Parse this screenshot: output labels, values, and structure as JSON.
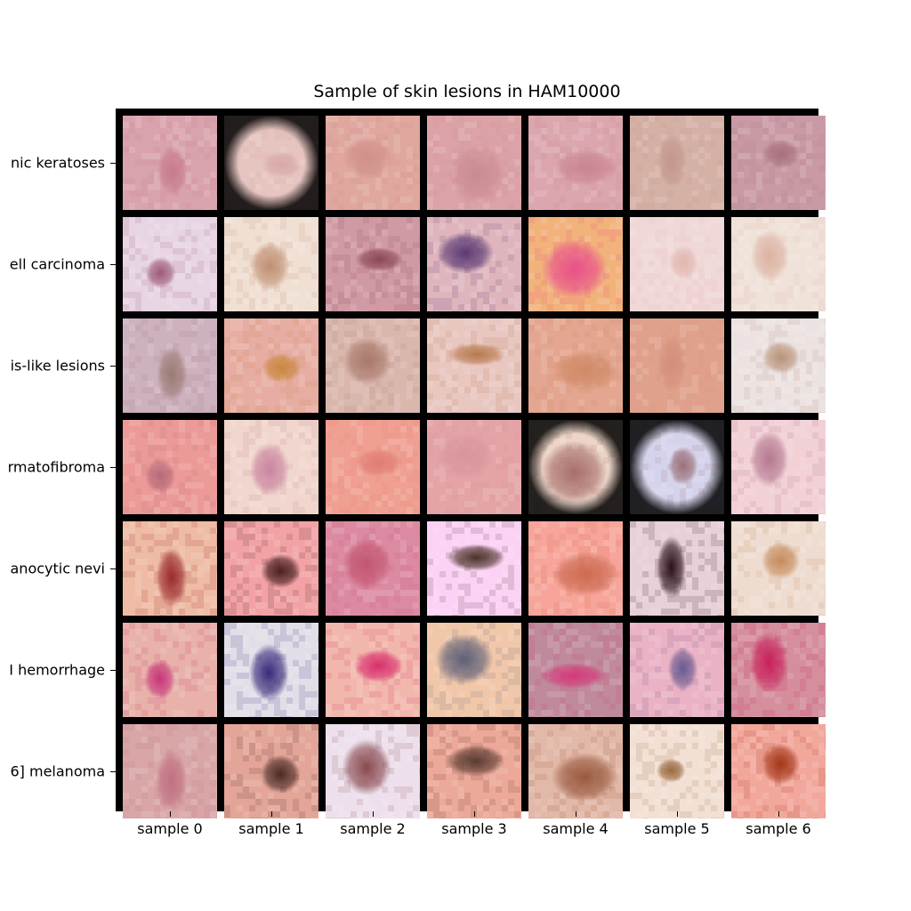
{
  "title": "Sample of skin lesions in HAM10000",
  "row_labels": [
    "nic keratoses",
    "ell carcinoma",
    "is-like lesions",
    "rmatofibroma",
    "anocytic nevi",
    "I hemorrhage",
    "6] melanoma"
  ],
  "col_labels": [
    "sample 0",
    "sample 1",
    "sample 2",
    "sample 3",
    "sample 4",
    "sample 5",
    "sample 6"
  ],
  "tiles": [
    [
      {
        "bg": "#d9a3ad",
        "lesion": "#c77a8c"
      },
      {
        "bg": "#e6c4bf",
        "lesion": "#d7a9a7",
        "vignette": true
      },
      {
        "bg": "#dfa79e",
        "lesion": "#d0908a"
      },
      {
        "bg": "#dba3a7",
        "lesion": "#cb8a93"
      },
      {
        "bg": "#dba6ad",
        "lesion": "#c98591"
      },
      {
        "bg": "#d4b0a5",
        "lesion": "#c4968c"
      },
      {
        "bg": "#c99aa5",
        "lesion": "#a8707e"
      }
    ],
    [
      {
        "bg": "#e7d5e3",
        "lesion": "#9d5a78"
      },
      {
        "bg": "#f0e0d4",
        "lesion": "#c08f72"
      },
      {
        "bg": "#d09aa5",
        "lesion": "#8b4656"
      },
      {
        "bg": "#dfb5bd",
        "lesion": "#5a3a73"
      },
      {
        "bg": "#f2b27b",
        "lesion": "#e8508a"
      },
      {
        "bg": "#f0d8d8",
        "lesion": "#e2b7b0"
      },
      {
        "bg": "#f0e2d9",
        "lesion": "#dcb2a1"
      }
    ],
    [
      {
        "bg": "#cdb1bf",
        "lesion": "#9a7a72"
      },
      {
        "bg": "#e7ada3",
        "lesion": "#c9873d"
      },
      {
        "bg": "#dab7ad",
        "lesion": "#a8786a"
      },
      {
        "bg": "#e9c7c1",
        "lesion": "#b77a4e"
      },
      {
        "bg": "#e4a690",
        "lesion": "#cf8a66"
      },
      {
        "bg": "#e0a18c",
        "lesion": "#d48d7c"
      },
      {
        "bg": "#ece2e2",
        "lesion": "#b8947a"
      }
    ],
    [
      {
        "bg": "#ec9a98",
        "lesion": "#b76a78"
      },
      {
        "bg": "#f0d6cc",
        "lesion": "#c9849f"
      },
      {
        "bg": "#f0a092",
        "lesion": "#e07c74"
      },
      {
        "bg": "#e4a3a6",
        "lesion": "#d8959d"
      },
      {
        "bg": "#ecd5c8",
        "lesion": "#a86e6a",
        "vignette": true
      },
      {
        "bg": "#d5d3ec",
        "lesion": "#9a7078",
        "vignette": true
      },
      {
        "bg": "#f1d0d6",
        "lesion": "#b47990"
      }
    ],
    [
      {
        "bg": "#eebba5",
        "lesion": "#9b2b2e"
      },
      {
        "bg": "#f2a2a5",
        "lesion": "#4a2020"
      },
      {
        "bg": "#dc8aa2",
        "lesion": "#c25570"
      },
      {
        "bg": "#fbd1f4",
        "lesion": "#4a3228"
      },
      {
        "bg": "#f7a59a",
        "lesion": "#cc6a50"
      },
      {
        "bg": "#e7d0d8",
        "lesion": "#2a0f18"
      },
      {
        "bg": "#eedcd0",
        "lesion": "#c68a5c"
      }
    ],
    [
      {
        "bg": "#e8b1a9",
        "lesion": "#c8357a"
      },
      {
        "bg": "#e2dee8",
        "lesion": "#3a2b7a"
      },
      {
        "bg": "#f2b7ac",
        "lesion": "#d8306e"
      },
      {
        "bg": "#f1c7a9",
        "lesion": "#5e6078"
      },
      {
        "bg": "#bf8a9c",
        "lesion": "#d43a7a"
      },
      {
        "bg": "#eab2c4",
        "lesion": "#6a5a90"
      },
      {
        "bg": "#d58e9c",
        "lesion": "#c8205a"
      }
    ],
    [
      {
        "bg": "#d9a6a7",
        "lesion": "#c07080"
      },
      {
        "bg": "#e4a599",
        "lesion": "#4a2a25"
      },
      {
        "bg": "#ede0ec",
        "lesion": "#8a4a50"
      },
      {
        "bg": "#eca898",
        "lesion": "#5a3a30"
      },
      {
        "bg": "#e2b8a8",
        "lesion": "#9a5a40"
      },
      {
        "bg": "#f2e0d4",
        "lesion": "#9a6a40"
      },
      {
        "bg": "#f2a79b",
        "lesion": "#a5381a"
      }
    ]
  ]
}
